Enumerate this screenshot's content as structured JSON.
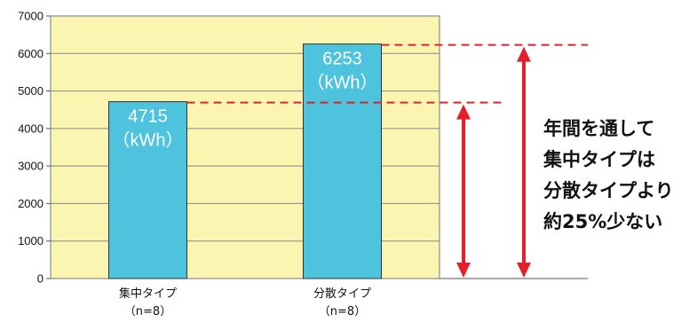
{
  "chart_data": {
    "type": "bar",
    "categories": [
      "集中タイプ",
      "分散タイプ"
    ],
    "category_sublabels": [
      "（n=8）",
      "（n=8）"
    ],
    "values": [
      4715,
      6253
    ],
    "value_labels": [
      "4715",
      "6253"
    ],
    "unit_label": "（kWh）",
    "title": "",
    "xlabel": "",
    "ylabel": "",
    "ylim": [
      0,
      7000
    ],
    "yticks": [
      0,
      1000,
      2000,
      3000,
      4000,
      5000,
      6000,
      7000
    ],
    "ytick_labels": [
      "0",
      "1000",
      "2000",
      "3000",
      "4000",
      "5000",
      "6000",
      "7000"
    ],
    "grid": true,
    "legend": "none",
    "colors": {
      "bar": "#4dc3de",
      "plot_background": "#faf5b0",
      "annotation_lines": "#e6202a"
    },
    "annotation": {
      "lines": [
        "年間を通して",
        "集中タイプは",
        "分散タイプより",
        "約25%少ない"
      ]
    }
  }
}
